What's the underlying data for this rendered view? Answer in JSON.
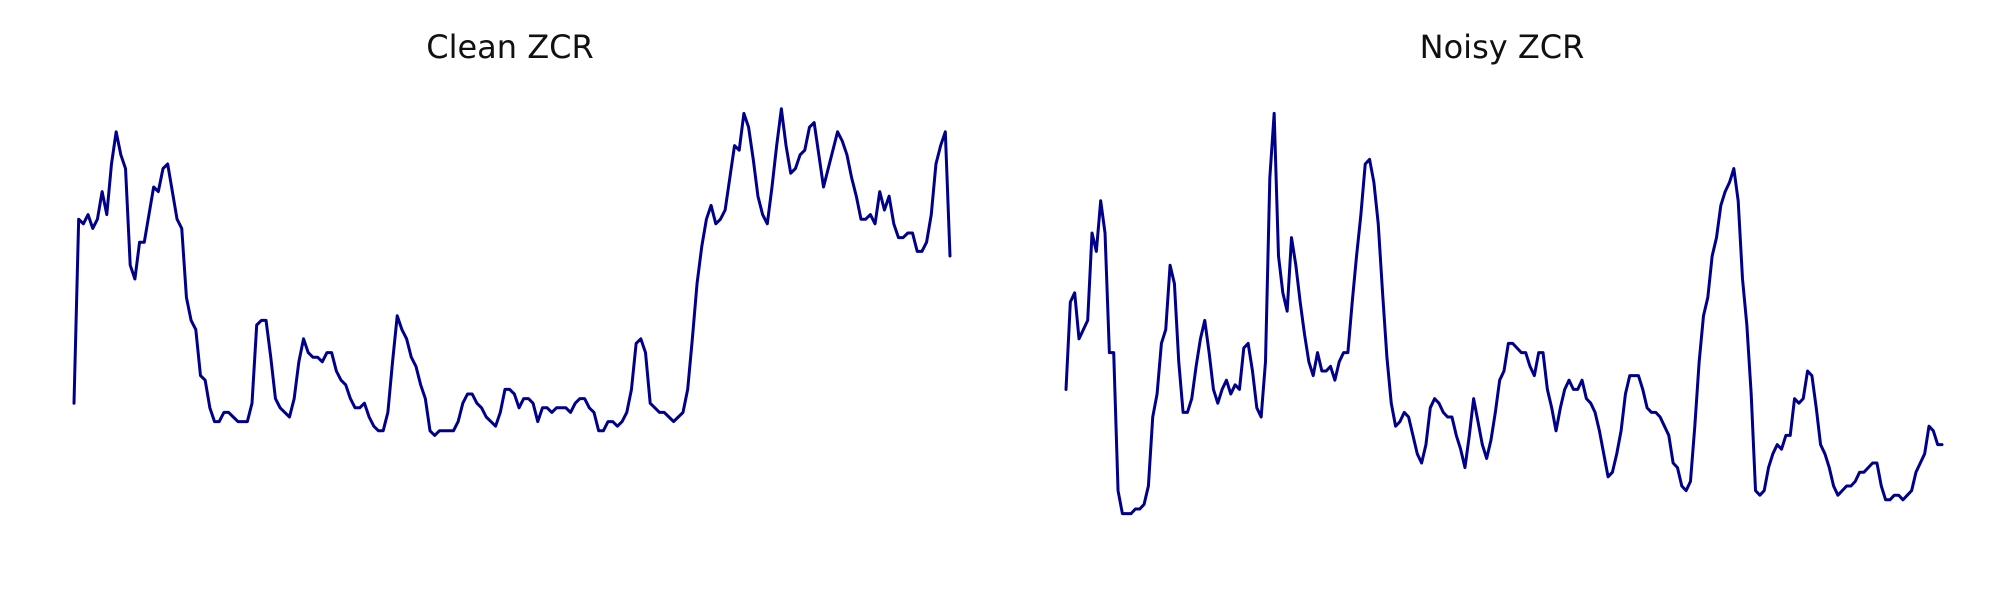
{
  "colors": {
    "line": "#00008b",
    "background": "#ffffff"
  },
  "chart_data": [
    {
      "type": "line",
      "title": "Clean ZCR",
      "axes_visible": false,
      "grid": false,
      "ylim": [
        0,
        1
      ],
      "series": [
        {
          "values": [
            0.33,
            0.73,
            0.72,
            0.74,
            0.71,
            0.73,
            0.79,
            0.74,
            0.85,
            0.92,
            0.87,
            0.84,
            0.63,
            0.6,
            0.68,
            0.68,
            0.74,
            0.8,
            0.79,
            0.84,
            0.85,
            0.79,
            0.73,
            0.71,
            0.56,
            0.51,
            0.49,
            0.39,
            0.38,
            0.32,
            0.29,
            0.29,
            0.31,
            0.31,
            0.3,
            0.29,
            0.29,
            0.29,
            0.33,
            0.5,
            0.51,
            0.51,
            0.43,
            0.34,
            0.32,
            0.31,
            0.3,
            0.34,
            0.42,
            0.47,
            0.44,
            0.43,
            0.43,
            0.42,
            0.44,
            0.44,
            0.4,
            0.38,
            0.37,
            0.34,
            0.32,
            0.32,
            0.33,
            0.3,
            0.28,
            0.27,
            0.27,
            0.31,
            0.42,
            0.52,
            0.49,
            0.47,
            0.43,
            0.41,
            0.37,
            0.34,
            0.27,
            0.26,
            0.27,
            0.27,
            0.27,
            0.27,
            0.29,
            0.33,
            0.35,
            0.35,
            0.33,
            0.32,
            0.3,
            0.29,
            0.28,
            0.31,
            0.36,
            0.36,
            0.35,
            0.32,
            0.34,
            0.34,
            0.33,
            0.29,
            0.32,
            0.32,
            0.31,
            0.32,
            0.32,
            0.32,
            0.31,
            0.33,
            0.34,
            0.34,
            0.32,
            0.31,
            0.27,
            0.27,
            0.29,
            0.29,
            0.28,
            0.29,
            0.31,
            0.36,
            0.46,
            0.47,
            0.44,
            0.33,
            0.32,
            0.31,
            0.31,
            0.3,
            0.29,
            0.3,
            0.31,
            0.36,
            0.47,
            0.59,
            0.67,
            0.73,
            0.76,
            0.72,
            0.73,
            0.75,
            0.82,
            0.89,
            0.88,
            0.96,
            0.93,
            0.86,
            0.78,
            0.74,
            0.72,
            0.8,
            0.89,
            0.97,
            0.89,
            0.83,
            0.84,
            0.87,
            0.88,
            0.93,
            0.94,
            0.87,
            0.8,
            0.84,
            0.88,
            0.92,
            0.9,
            0.87,
            0.82,
            0.78,
            0.73,
            0.73,
            0.74,
            0.72,
            0.79,
            0.75,
            0.78,
            0.72,
            0.69,
            0.69,
            0.7,
            0.7,
            0.66,
            0.66,
            0.68,
            0.74,
            0.85,
            0.89,
            0.92,
            0.65
          ]
        }
      ]
    },
    {
      "type": "line",
      "title": "Noisy ZCR",
      "axes_visible": false,
      "grid": false,
      "ylim": [
        0,
        1
      ],
      "series": [
        {
          "values": [
            0.36,
            0.55,
            0.57,
            0.47,
            0.49,
            0.51,
            0.7,
            0.66,
            0.77,
            0.7,
            0.44,
            0.44,
            0.14,
            0.09,
            0.09,
            0.09,
            0.1,
            0.1,
            0.11,
            0.15,
            0.3,
            0.35,
            0.46,
            0.49,
            0.63,
            0.59,
            0.42,
            0.31,
            0.31,
            0.34,
            0.41,
            0.47,
            0.51,
            0.44,
            0.36,
            0.33,
            0.36,
            0.38,
            0.35,
            0.37,
            0.36,
            0.45,
            0.46,
            0.4,
            0.32,
            0.3,
            0.42,
            0.82,
            0.96,
            0.65,
            0.57,
            0.53,
            0.69,
            0.63,
            0.55,
            0.48,
            0.42,
            0.39,
            0.44,
            0.4,
            0.4,
            0.41,
            0.38,
            0.42,
            0.44,
            0.44,
            0.55,
            0.65,
            0.74,
            0.85,
            0.86,
            0.81,
            0.72,
            0.57,
            0.43,
            0.33,
            0.28,
            0.29,
            0.31,
            0.3,
            0.26,
            0.22,
            0.2,
            0.24,
            0.32,
            0.34,
            0.33,
            0.31,
            0.3,
            0.3,
            0.26,
            0.23,
            0.19,
            0.26,
            0.34,
            0.29,
            0.24,
            0.21,
            0.25,
            0.31,
            0.38,
            0.4,
            0.46,
            0.46,
            0.45,
            0.44,
            0.44,
            0.41,
            0.39,
            0.44,
            0.44,
            0.36,
            0.32,
            0.27,
            0.32,
            0.36,
            0.38,
            0.36,
            0.36,
            0.38,
            0.34,
            0.33,
            0.31,
            0.27,
            0.22,
            0.17,
            0.18,
            0.22,
            0.27,
            0.35,
            0.39,
            0.39,
            0.39,
            0.36,
            0.32,
            0.31,
            0.31,
            0.3,
            0.28,
            0.26,
            0.2,
            0.19,
            0.15,
            0.14,
            0.16,
            0.28,
            0.42,
            0.52,
            0.56,
            0.65,
            0.69,
            0.76,
            0.79,
            0.81,
            0.84,
            0.77,
            0.6,
            0.5,
            0.35,
            0.14,
            0.13,
            0.14,
            0.19,
            0.22,
            0.24,
            0.23,
            0.26,
            0.26,
            0.34,
            0.33,
            0.34,
            0.4,
            0.39,
            0.32,
            0.24,
            0.22,
            0.19,
            0.15,
            0.13,
            0.14,
            0.15,
            0.15,
            0.16,
            0.18,
            0.18,
            0.19,
            0.2,
            0.2,
            0.15,
            0.12,
            0.12,
            0.13,
            0.13,
            0.12,
            0.13,
            0.14,
            0.18,
            0.2,
            0.22,
            0.28,
            0.27,
            0.24,
            0.24
          ]
        }
      ]
    }
  ]
}
